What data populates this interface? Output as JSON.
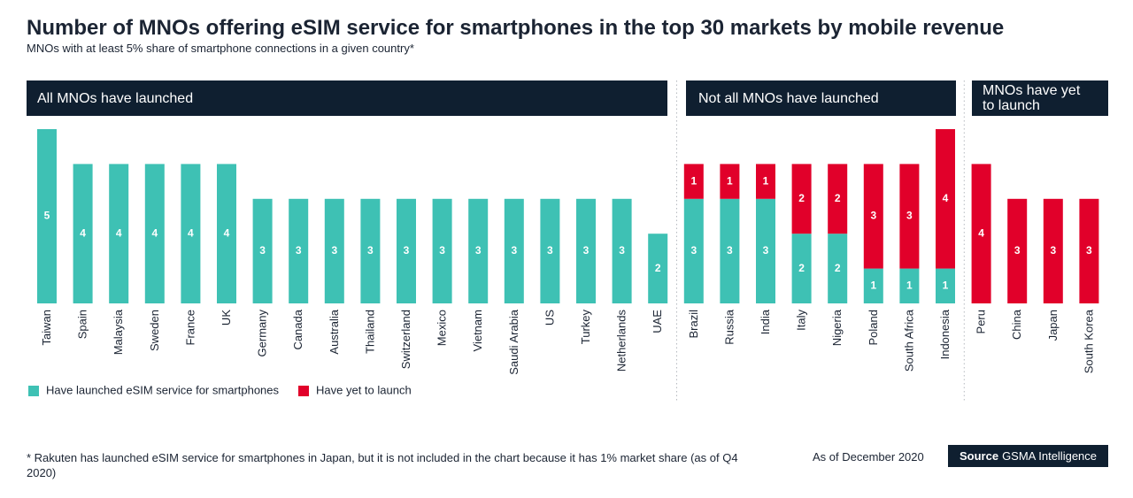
{
  "chart_data": {
    "type": "bar",
    "stacked": true,
    "title": "Number of MNOs offering eSIM service for smartphones in the top 30 markets by mobile revenue",
    "subtitle": "MNOs with at least 5% share of smartphone connections in a given country*",
    "series": [
      {
        "name": "Have launched eSIM service for smartphones",
        "color": "#3ec1b4"
      },
      {
        "name": "Have yet to launch",
        "color": "#e1002a"
      }
    ],
    "panels": [
      {
        "label": "All MNOs have launched",
        "categories": [
          "Taiwan",
          "Spain",
          "Malaysia",
          "Sweden",
          "France",
          "UK",
          "Germany",
          "Canada",
          "Australia",
          "Thailand",
          "Switzerland",
          "Mexico",
          "Vietnam",
          "Saudi Arabia",
          "US",
          "Turkey",
          "Netherlands",
          "UAE"
        ],
        "series": [
          {
            "values": [
              5,
              4,
              4,
              4,
              4,
              4,
              3,
              3,
              3,
              3,
              3,
              3,
              3,
              3,
              3,
              3,
              3,
              2
            ]
          },
          {
            "values": [
              null,
              null,
              null,
              null,
              null,
              null,
              null,
              null,
              null,
              null,
              null,
              null,
              null,
              null,
              null,
              null,
              null,
              null
            ]
          }
        ]
      },
      {
        "label": "Not all MNOs have launched",
        "categories": [
          "Brazil",
          "Russia",
          "India",
          "Italy",
          "Nigeria",
          "Poland",
          "South Africa",
          "Indonesia"
        ],
        "series": [
          {
            "values": [
              3,
              3,
              3,
              2,
              2,
              1,
              1,
              1
            ]
          },
          {
            "values": [
              1,
              1,
              1,
              2,
              2,
              3,
              3,
              4
            ]
          }
        ]
      },
      {
        "label": "MNOs have yet to launch",
        "categories": [
          "Peru",
          "China",
          "Japan",
          "South Korea"
        ],
        "series": [
          {
            "values": [
              null,
              null,
              null,
              null
            ]
          },
          {
            "values": [
              4,
              3,
              3,
              3
            ]
          }
        ]
      }
    ]
  },
  "footnote": "* Rakuten has launched eSIM service for smartphones in Japan, but it is not included in the chart because it has 1% market share (as of Q4 2020)",
  "date_note": "As of December 2020",
  "source": {
    "label": "Source",
    "text": "GSMA Intelligence"
  }
}
